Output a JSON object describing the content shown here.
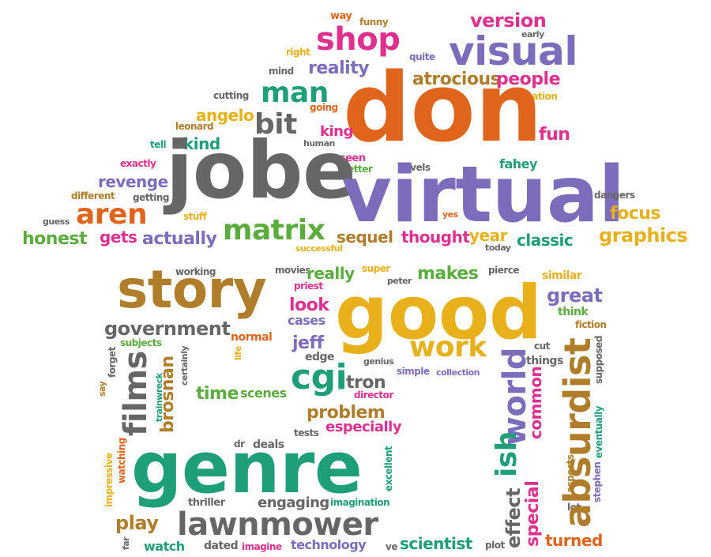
{
  "colors": {
    "orange": "#e0651c",
    "gray": "#666666",
    "purple": "#7d6bbb",
    "pink": "#e0308f",
    "gold": "#e8b11b",
    "brown": "#b07d2a",
    "green": "#5aac3c",
    "teal": "#1f9e7a"
  },
  "words": {
    "don": "don",
    "jobe": "jobe",
    "virtual": "virtual",
    "good": "good",
    "genre": "genre",
    "story": "story",
    "lawnmower": "lawnmower",
    "absurdist": "absurdist",
    "world": "world",
    "visual": "visual",
    "shop": "shop",
    "man": "man",
    "bit": "bit",
    "aren": "aren",
    "matrix": "matrix",
    "work": "work",
    "cgi": "cgi",
    "films": "films",
    "ish": "ish",
    "brosnan": "brosnan",
    "version": "version",
    "reality": "reality",
    "atrocious": "atrocious",
    "people": "people",
    "angelo": "angelo",
    "kind": "kind",
    "revenge": "revenge",
    "honest": "honest",
    "gets": "gets",
    "actually": "actually",
    "sequel": "sequel",
    "thought": "thought",
    "year": "year",
    "classic": "classic",
    "graphics": "graphics",
    "focus": "focus",
    "fun": "fun",
    "fahey": "fahey",
    "dangers": "dangers",
    "government": "government",
    "really": "really",
    "makes": "makes",
    "great": "great",
    "look": "look",
    "cases": "cases",
    "jeff": "jeff",
    "edge": "edge",
    "tron": "tron",
    "problem": "problem",
    "especially": "especially",
    "time": "time",
    "scenes": "scenes",
    "play": "play",
    "watch": "watch",
    "dated": "dated",
    "imagine": "imagine",
    "technology": "technology",
    "scientist": "scientist",
    "turned": "turned",
    "effect": "effect",
    "special": "special",
    "common": "common",
    "engaging": "engaging",
    "imagination": "imagination",
    "thriller": "thriller",
    "plot": "plot",
    "ve": "ve",
    "deals": "deals",
    "dr": "dr",
    "tests": "tests",
    "excellent": "excellent",
    "director": "director",
    "simple": "simple",
    "collection": "collection",
    "genius": "genius",
    "things": "things",
    "cut": "cut",
    "fiction": "fiction",
    "think": "think",
    "similar": "similar",
    "supposed": "supposed",
    "eventually": "eventually",
    "stephen": "stephen",
    "aspects": "aspects",
    "lot": "lot",
    "normal": "normal",
    "life": "life",
    "certainly": "certainly",
    "trainwreck": "trainwreck",
    "subjects": "subjects",
    "forget": "forget",
    "say": "say",
    "watching": "watching",
    "impressive": "impressive",
    "far": "far",
    "movies": "movies",
    "working": "working",
    "priest": "priest",
    "super": "super",
    "peter": "peter",
    "pierce": "pierce",
    "successful": "successful",
    "today": "today",
    "yes": "yes",
    "levels": "levels",
    "better": "better",
    "seen": "seen",
    "human": "human",
    "king": "king",
    "leonard": "leonard",
    "tell": "tell",
    "cutting": "cutting",
    "going": "going",
    "mind": "mind",
    "right": "right",
    "way": "way",
    "funny": "funny",
    "quite": "quite",
    "early": "early",
    "animation": "animation",
    "exactly": "exactly",
    "different": "different",
    "getting": "getting",
    "guess": "guess",
    "stuff": "stuff"
  }
}
